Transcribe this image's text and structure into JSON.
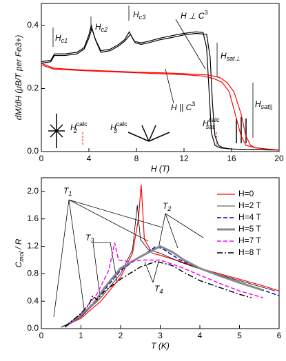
{
  "chart_data": [
    {
      "type": "line",
      "xlabel": "H (T)",
      "ylabel": "dM/dH (μB/T per Fe3+)",
      "xlim": [
        0,
        20
      ],
      "xticks": [
        0,
        4,
        8,
        12,
        16,
        20
      ],
      "ylim": [
        0,
        0.47
      ],
      "yticks": [
        {
          "value": 0,
          "label": "0.0"
        },
        0.2,
        0.4
      ],
      "series": [
        {
          "color": "#000000",
          "style": "solid",
          "x": [
            0,
            0.8,
            1.1,
            2,
            3,
            3.6,
            4,
            4.2,
            4.5,
            5,
            5.8,
            6.5,
            7,
            7.4,
            7.8,
            8.4,
            9,
            10,
            11,
            12,
            13,
            13.6,
            13.9,
            14.1,
            14.3,
            14.6,
            15,
            16,
            18,
            20
          ],
          "values": [
            0.285,
            0.29,
            0.31,
            0.31,
            0.315,
            0.33,
            0.37,
            0.4,
            0.36,
            0.32,
            0.325,
            0.34,
            0.355,
            0.38,
            0.35,
            0.345,
            0.35,
            0.36,
            0.368,
            0.375,
            0.38,
            0.378,
            0.33,
            0.2,
            0.06,
            0.02,
            0.012,
            0.008,
            0.006,
            0.005
          ]
        },
        {
          "color": "#000000",
          "style": "solid",
          "x": [
            0,
            0.8,
            1.1,
            2,
            3,
            3.6,
            4,
            4.25,
            4.6,
            5,
            5.8,
            6.5,
            7,
            7.5,
            7.9,
            8.4,
            9,
            10,
            11,
            12,
            13,
            13.9,
            14.2,
            14.4,
            14.6,
            14.9,
            15.3,
            16,
            18,
            20
          ],
          "values": [
            0.28,
            0.285,
            0.305,
            0.305,
            0.31,
            0.325,
            0.36,
            0.39,
            0.35,
            0.315,
            0.32,
            0.335,
            0.35,
            0.372,
            0.345,
            0.34,
            0.345,
            0.355,
            0.362,
            0.37,
            0.375,
            0.372,
            0.3,
            0.15,
            0.05,
            0.02,
            0.012,
            0.008,
            0.006,
            0.005
          ]
        },
        {
          "color": "#ff0000",
          "style": "solid",
          "x": [
            0,
            1,
            2,
            4,
            6,
            8,
            10,
            12,
            14,
            15,
            15.6,
            16.2,
            16.8,
            17.2,
            17.6,
            18,
            19,
            20
          ],
          "values": [
            0.28,
            0.265,
            0.262,
            0.258,
            0.255,
            0.252,
            0.25,
            0.247,
            0.243,
            0.235,
            0.22,
            0.19,
            0.12,
            0.05,
            0.02,
            0.012,
            0.008,
            0.005
          ]
        },
        {
          "color": "#ff0000",
          "style": "solid",
          "x": [
            0,
            1,
            2,
            4,
            6,
            8,
            10,
            12,
            13.5,
            14.5,
            15.2,
            15.8,
            16.3,
            16.8,
            17.2,
            18,
            19,
            20
          ],
          "values": [
            0.275,
            0.262,
            0.26,
            0.256,
            0.253,
            0.25,
            0.247,
            0.244,
            0.24,
            0.232,
            0.22,
            0.19,
            0.12,
            0.05,
            0.02,
            0.012,
            0.008,
            0.005
          ]
        }
      ],
      "annotations": [
        {
          "text": "H",
          "sub": "c1"
        },
        {
          "text": "H",
          "sub": "c2"
        },
        {
          "text": "H",
          "sub": "c3"
        },
        {
          "text": "H ⊥ C",
          "sup": "3"
        },
        {
          "text": "H",
          "sub": "sat⊥"
        },
        {
          "text": "H || C",
          "sup": "3"
        },
        {
          "text": "H",
          "sub": "sat||"
        },
        {
          "text": "H",
          "sub": "2",
          "sup": "calc"
        },
        {
          "text": "H",
          "sub": "3",
          "sup": "calc"
        },
        {
          "text": "H",
          "sub": "sat",
          "sup": "calc"
        }
      ]
    },
    {
      "type": "line",
      "xlabel": "T (K)",
      "ylabel": {
        "text": "C",
        "sub": "mol",
        "after": " / R"
      },
      "xlim": [
        0,
        6
      ],
      "xticks": [
        0,
        1,
        2,
        3,
        4,
        5,
        6
      ],
      "ylim": [
        0,
        2.2
      ],
      "yticks": [
        {
          "value": 0,
          "label": "0.0"
        },
        0.4,
        0.8,
        1.2,
        1.6,
        {
          "value": 2,
          "label": "2.0"
        }
      ],
      "legend": "upper right",
      "series": [
        {
          "name": "H=0",
          "color": "#ff0000",
          "style": "solid",
          "x": [
            0.5,
            1,
            1.5,
            2,
            2.3,
            2.45,
            2.52,
            2.6,
            2.8,
            3,
            3.5,
            4,
            4.5,
            5,
            5.5,
            6
          ],
          "values": [
            0.02,
            0.15,
            0.4,
            0.75,
            1.1,
            1.6,
            2.1,
            1.3,
            1.1,
            1.07,
            0.98,
            0.88,
            0.8,
            0.72,
            0.64,
            0.55
          ]
        },
        {
          "name": "H=2 T",
          "color": "#000000",
          "style": "thin",
          "x": [
            0.5,
            1,
            1.5,
            2,
            2.3,
            2.42,
            2.5,
            2.7,
            3,
            3.5,
            4,
            5,
            5.9
          ],
          "values": [
            0.02,
            0.17,
            0.45,
            0.8,
            1.15,
            1.8,
            1.3,
            1.15,
            1.1,
            0.97,
            0.87,
            0.7,
            0.55
          ]
        },
        {
          "name": "H=4 T",
          "color": "#0000cc",
          "style": "dashed",
          "x": [
            0.6,
            1,
            1.5,
            2,
            2.5,
            2.9,
            3.1,
            3.5,
            4,
            4.5,
            5,
            6
          ],
          "values": [
            0.02,
            0.18,
            0.5,
            0.85,
            1.05,
            1.2,
            1.15,
            1.0,
            0.88,
            0.78,
            0.68,
            0.48
          ]
        },
        {
          "name": "H=5 T",
          "color": "#888888",
          "style": "thick",
          "x": [
            0.6,
            1,
            1.3,
            1.6,
            2,
            2.5,
            3,
            3.3,
            3.6,
            4,
            4.5,
            5,
            5.6
          ],
          "values": [
            0.03,
            0.2,
            0.35,
            0.6,
            0.88,
            1.05,
            1.2,
            1.12,
            1.0,
            0.88,
            0.77,
            0.67,
            0.56
          ]
        },
        {
          "name": "H=7 T",
          "color": "#ff00ff",
          "style": "dashed",
          "x": [
            0.6,
            1,
            1.4,
            1.7,
            1.85,
            1.95,
            2.2,
            2.6,
            3,
            3.5,
            4,
            4.5,
            5,
            5.6
          ],
          "values": [
            0.03,
            0.22,
            0.5,
            0.85,
            1.25,
            1.0,
            0.98,
            1.0,
            1.0,
            0.9,
            0.78,
            0.66,
            0.55,
            0.45
          ]
        },
        {
          "name": "H=8 T",
          "color": "#000000",
          "style": "dashdot",
          "x": [
            0.6,
            1,
            1.2,
            1.3,
            1.4,
            1.6,
            2,
            2.5,
            2.9,
            3.3,
            3.6,
            4,
            4.5,
            5,
            5.3
          ],
          "values": [
            0.03,
            0.22,
            0.35,
            0.48,
            0.42,
            0.55,
            0.72,
            0.9,
            0.98,
            0.92,
            0.82,
            0.7,
            0.6,
            0.5,
            0.45
          ]
        }
      ],
      "annotations": [
        {
          "text": "T",
          "sub": "1"
        },
        {
          "text": "T",
          "sub": "2"
        },
        {
          "text": "T",
          "sub": "3"
        },
        {
          "text": "T",
          "sub": "4"
        }
      ]
    }
  ]
}
